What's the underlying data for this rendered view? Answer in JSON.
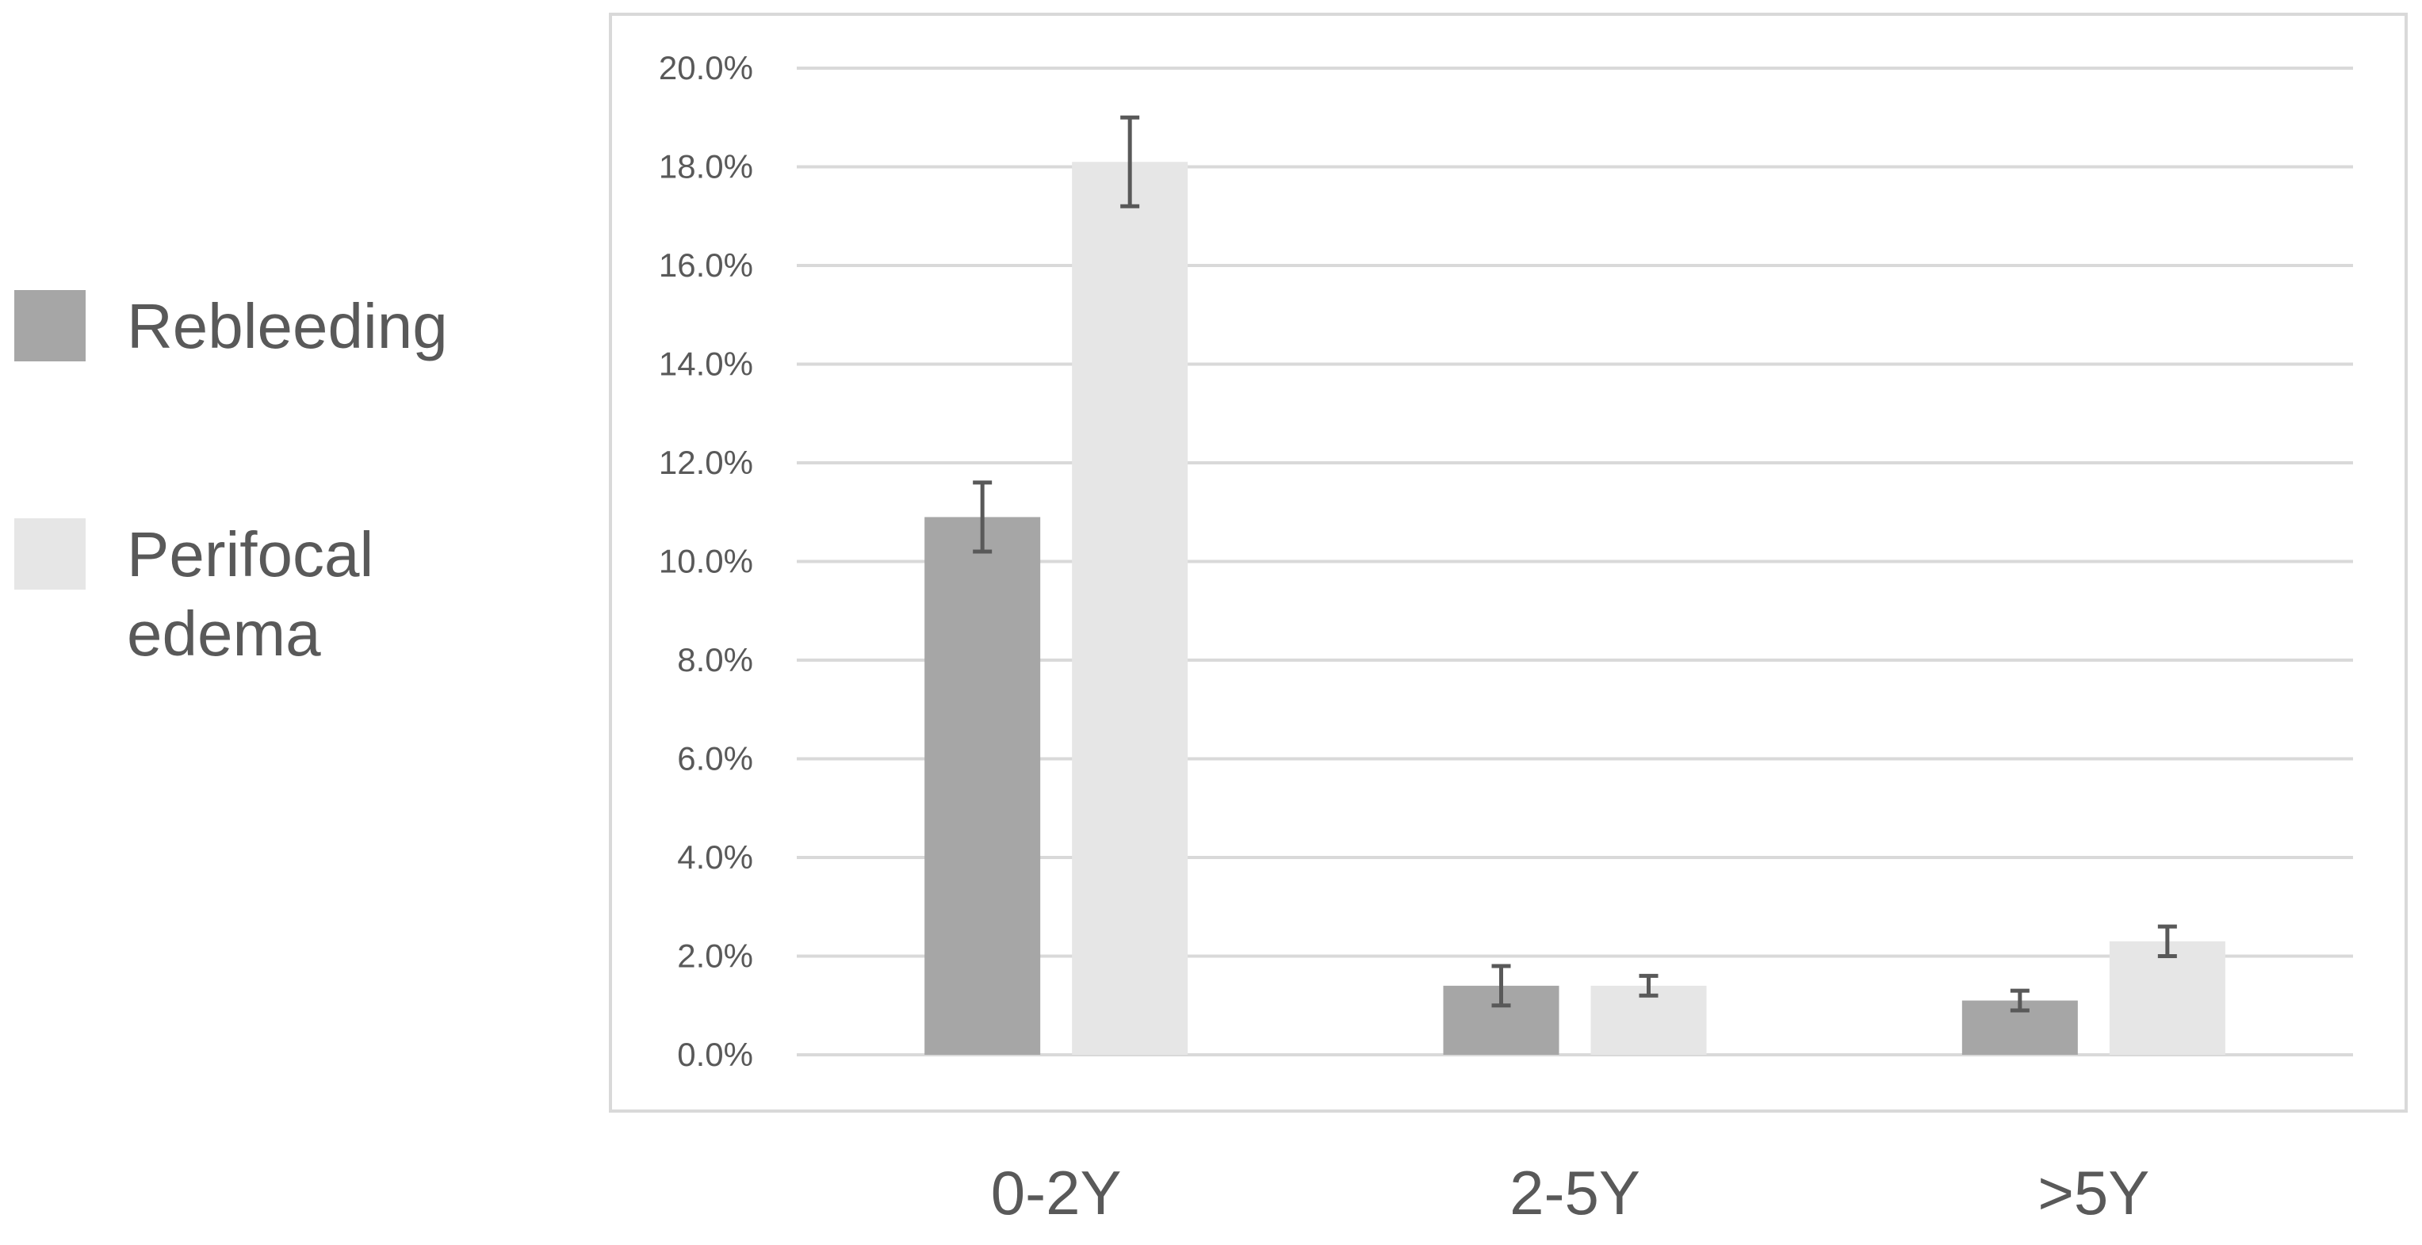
{
  "chart_data": {
    "type": "bar",
    "title": "",
    "xlabel": "",
    "ylabel": "",
    "categories": [
      "0-2Y",
      "2-5Y",
      ">5Y"
    ],
    "series": [
      {
        "name": "Rebleeding",
        "color": "#a6a6a6",
        "values": [
          10.9,
          1.4,
          1.1
        ],
        "error_low": [
          10.2,
          1.0,
          0.9
        ],
        "error_high": [
          11.6,
          1.8,
          1.3
        ]
      },
      {
        "name": "Perifocal edema",
        "color": "#e6e6e6",
        "values": [
          18.1,
          1.4,
          2.3
        ],
        "error_low": [
          17.2,
          1.2,
          2.0
        ],
        "error_high": [
          19.0,
          1.6,
          2.6
        ]
      }
    ],
    "ylim": [
      0,
      20
    ],
    "yticks": [
      0,
      2,
      4,
      6,
      8,
      10,
      12,
      14,
      16,
      18,
      20
    ],
    "y_tick_format": "percent_1dp",
    "grid": true,
    "legend": {
      "position": "left",
      "labels": [
        {
          "series": 0,
          "lines": [
            "Rebleeding"
          ]
        },
        {
          "series": 1,
          "lines": [
            "Perifocal",
            "edema"
          ]
        }
      ]
    }
  }
}
